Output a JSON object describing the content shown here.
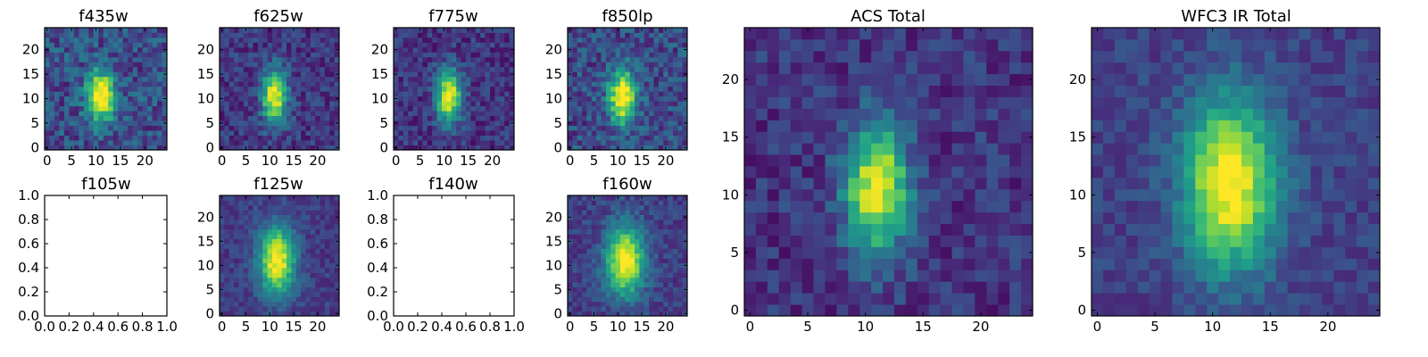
{
  "figure": {
    "background": "#ffffff",
    "colormap": "viridis"
  },
  "chart_data": [
    {
      "type": "heatmap",
      "title": "f435w",
      "grid": [
        25,
        25
      ],
      "xticks": [
        "0",
        "5",
        "10",
        "15",
        "20"
      ],
      "yticks": [
        "0",
        "5",
        "10",
        "15",
        "20"
      ],
      "peak": [
        11,
        10.5
      ],
      "spread": [
        2,
        3.6
      ],
      "noise": 0.34,
      "base": 0.4,
      "seed": 11
    },
    {
      "type": "heatmap",
      "title": "f625w",
      "grid": [
        25,
        25
      ],
      "xticks": [
        "0",
        "5",
        "10",
        "15",
        "20"
      ],
      "yticks": [
        "0",
        "5",
        "10",
        "15",
        "20"
      ],
      "peak": [
        11,
        10.5
      ],
      "spread": [
        1.8,
        3.8
      ],
      "noise": 0.26,
      "base": 0.28,
      "seed": 23
    },
    {
      "type": "heatmap",
      "title": "f775w",
      "grid": [
        25,
        25
      ],
      "xticks": [
        "0",
        "5",
        "10",
        "15",
        "20"
      ],
      "yticks": [
        "0",
        "5",
        "10",
        "15",
        "20"
      ],
      "peak": [
        11,
        10.5
      ],
      "spread": [
        1.8,
        3.8
      ],
      "noise": 0.25,
      "base": 0.26,
      "seed": 37
    },
    {
      "type": "heatmap",
      "title": "f850lp",
      "grid": [
        25,
        25
      ],
      "xticks": [
        "0",
        "5",
        "10",
        "15",
        "20"
      ],
      "yticks": [
        "0",
        "5",
        "10",
        "15",
        "20"
      ],
      "peak": [
        11,
        10.5
      ],
      "spread": [
        2,
        3.8
      ],
      "noise": 0.32,
      "base": 0.38,
      "seed": 41
    },
    {
      "type": "empty",
      "title": "f105w",
      "xlim": [
        0,
        1
      ],
      "ylim": [
        0,
        1
      ],
      "xticks": [
        "0.0",
        "0.2",
        "0.4",
        "0.6",
        "0.8",
        "1.0"
      ],
      "yticks": [
        "0.0",
        "0.2",
        "0.4",
        "0.6",
        "0.8",
        "1.0"
      ]
    },
    {
      "type": "heatmap",
      "title": "f125w",
      "grid": [
        25,
        25
      ],
      "xticks": [
        "0",
        "5",
        "10",
        "15",
        "20"
      ],
      "yticks": [
        "0",
        "5",
        "10",
        "15",
        "20"
      ],
      "peak": [
        11.5,
        11
      ],
      "spread": [
        2.6,
        5
      ],
      "noise": 0.18,
      "base": 0.3,
      "seed": 53
    },
    {
      "type": "empty",
      "title": "f140w",
      "xlim": [
        0,
        1
      ],
      "ylim": [
        0,
        1
      ],
      "xticks": [
        "0.0",
        "0.2",
        "0.4",
        "0.6",
        "0.8",
        "1.0"
      ],
      "yticks": [
        "0.0",
        "0.2",
        "0.4",
        "0.6",
        "0.8",
        "1.0"
      ]
    },
    {
      "type": "heatmap",
      "title": "f160w",
      "grid": [
        25,
        25
      ],
      "xticks": [
        "0",
        "5",
        "10",
        "15",
        "20"
      ],
      "yticks": [
        "0",
        "5",
        "10",
        "15",
        "20"
      ],
      "peak": [
        11.5,
        11
      ],
      "spread": [
        2.8,
        5
      ],
      "noise": 0.2,
      "base": 0.32,
      "seed": 67
    },
    {
      "type": "heatmap",
      "title": "ACS Total",
      "grid": [
        25,
        25
      ],
      "xticks": [
        "0",
        "5",
        "10",
        "15",
        "20"
      ],
      "yticks": [
        "0",
        "5",
        "10",
        "15",
        "20"
      ],
      "peak": [
        11,
        10.5
      ],
      "spread": [
        1.9,
        3.8
      ],
      "noise": 0.24,
      "base": 0.26,
      "seed": 79
    },
    {
      "type": "heatmap",
      "title": "WFC3 IR Total",
      "grid": [
        25,
        25
      ],
      "xticks": [
        "0",
        "5",
        "10",
        "15",
        "20"
      ],
      "yticks": [
        "0",
        "5",
        "10",
        "15",
        "20"
      ],
      "peak": [
        11.5,
        11
      ],
      "spread": [
        2.8,
        5.2
      ],
      "noise": 0.17,
      "base": 0.32,
      "seed": 97
    }
  ]
}
